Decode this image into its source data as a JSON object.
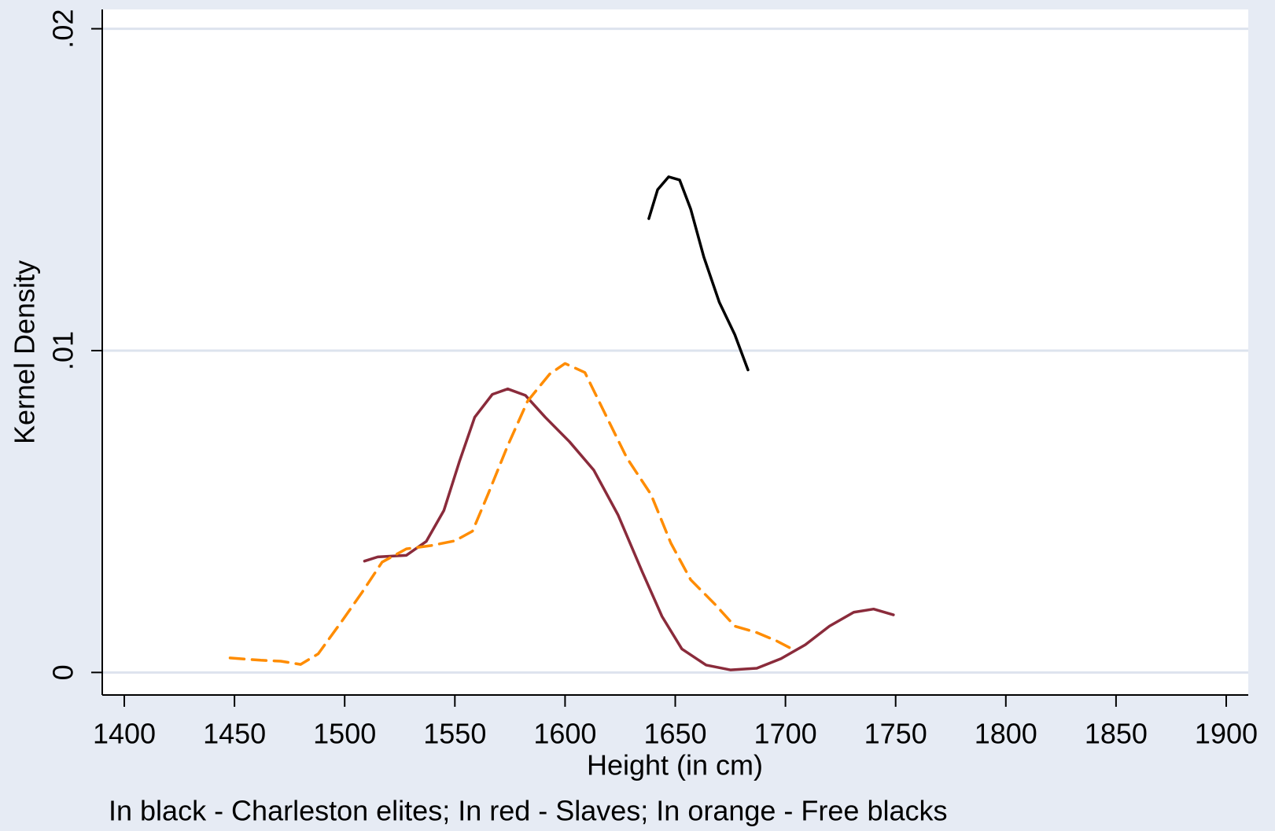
{
  "chart_data": {
    "type": "line",
    "x_label": "Height (in cm)",
    "y_label": "Kernel Density",
    "note": "In black - Charleston elites; In red - Slaves; In orange - Free blacks",
    "xlim": [
      1390,
      1910
    ],
    "ylim": [
      -0.0007,
      0.0206
    ],
    "xticks": [
      1400,
      1450,
      1500,
      1550,
      1600,
      1650,
      1700,
      1750,
      1800,
      1850,
      1900
    ],
    "yticks": [
      0,
      {
        "value": 0.01,
        "label": ".01"
      },
      {
        "value": 0.02,
        "label": ".02"
      }
    ],
    "grid": true,
    "series": [
      {
        "color": "#000000",
        "style": "solid",
        "x": [
          1638,
          1642,
          1647,
          1652,
          1657,
          1663,
          1670,
          1677,
          1683
        ],
        "values": [
          0.0141,
          0.015,
          0.0154,
          0.0153,
          0.0144,
          0.0129,
          0.0115,
          0.0105,
          0.0094
        ]
      },
      {
        "color": "#8a2b3b",
        "style": "solid",
        "x": [
          1509,
          1515,
          1528,
          1537,
          1545,
          1552,
          1559,
          1567,
          1574,
          1582,
          1591,
          1602,
          1613,
          1624,
          1635,
          1644,
          1653,
          1664,
          1675,
          1687,
          1698,
          1709,
          1720,
          1731,
          1740,
          1749
        ],
        "values": [
          0.00346,
          0.00359,
          0.00364,
          0.00407,
          0.00503,
          0.00654,
          0.00793,
          0.00864,
          0.00881,
          0.00861,
          0.00793,
          0.00717,
          0.00629,
          0.0049,
          0.00313,
          0.00174,
          0.00073,
          0.00023,
          8e-05,
          0.00013,
          0.00043,
          0.00086,
          0.00144,
          0.00187,
          0.00197,
          0.00179
        ]
      },
      {
        "color": "#ff8c00",
        "style": "dashed",
        "x": [
          1448,
          1462,
          1471,
          1480,
          1488,
          1499,
          1508,
          1517,
          1528,
          1539,
          1550,
          1558,
          1565,
          1574,
          1583,
          1593,
          1600,
          1609,
          1618,
          1628,
          1639,
          1648,
          1657,
          1668,
          1677,
          1687,
          1696,
          1703
        ],
        "values": [
          0.00045,
          0.00038,
          0.00035,
          0.00025,
          0.00058,
          0.00162,
          0.0025,
          0.00343,
          0.00384,
          0.00394,
          0.00409,
          0.00439,
          0.00553,
          0.00705,
          0.00843,
          0.00927,
          0.0096,
          0.00932,
          0.00806,
          0.00667,
          0.00553,
          0.00402,
          0.00288,
          0.00212,
          0.00144,
          0.00124,
          0.00098,
          0.00073
        ]
      }
    ]
  }
}
